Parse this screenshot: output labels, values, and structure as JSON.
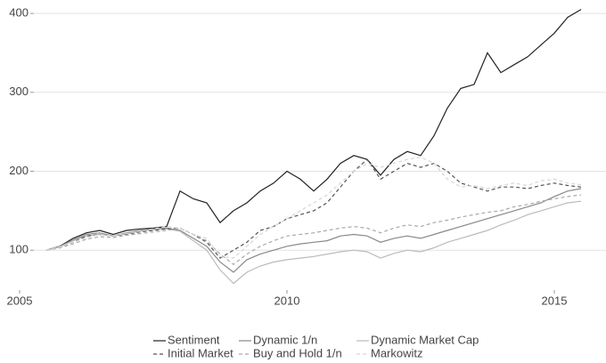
{
  "chart_data": {
    "type": "line",
    "x": [
      2005.5,
      2005.75,
      2006,
      2006.25,
      2006.5,
      2006.75,
      2007,
      2007.25,
      2007.5,
      2007.75,
      2008,
      2008.25,
      2008.5,
      2008.75,
      2009,
      2009.25,
      2009.5,
      2009.75,
      2010,
      2010.25,
      2010.5,
      2010.75,
      2011,
      2011.25,
      2011.5,
      2011.75,
      2012,
      2012.25,
      2012.5,
      2012.75,
      2013,
      2013.25,
      2013.5,
      2013.75,
      2014,
      2014.25,
      2014.5,
      2014.75,
      2015,
      2015.25,
      2015.5
    ],
    "series": [
      {
        "name": "Sentiment",
        "color": "#222222",
        "dash": false,
        "values": [
          100,
          105,
          115,
          122,
          125,
          120,
          125,
          127,
          128,
          130,
          175,
          165,
          160,
          135,
          150,
          160,
          175,
          185,
          200,
          190,
          175,
          190,
          210,
          220,
          215,
          195,
          215,
          225,
          220,
          245,
          280,
          305,
          310,
          350,
          325,
          335,
          345,
          360,
          375,
          395,
          405
        ]
      },
      {
        "name": "Dynamic 1/n",
        "color": "#888888",
        "dash": false,
        "values": [
          100,
          105,
          113,
          120,
          122,
          118,
          122,
          125,
          127,
          128,
          125,
          115,
          105,
          85,
          72,
          88,
          95,
          100,
          105,
          108,
          110,
          112,
          118,
          120,
          118,
          110,
          115,
          118,
          115,
          120,
          125,
          130,
          135,
          140,
          145,
          150,
          155,
          160,
          168,
          175,
          178
        ]
      },
      {
        "name": "Dynamic Market Cap",
        "color": "#bbbbbb",
        "dash": false,
        "values": [
          100,
          104,
          112,
          118,
          120,
          118,
          121,
          124,
          126,
          127,
          124,
          112,
          100,
          75,
          58,
          72,
          80,
          85,
          88,
          90,
          92,
          95,
          98,
          100,
          98,
          90,
          96,
          100,
          98,
          103,
          110,
          115,
          120,
          125,
          132,
          138,
          145,
          150,
          155,
          160,
          162
        ]
      },
      {
        "name": "Initial Market",
        "color": "#555555",
        "dash": true,
        "values": [
          100,
          103,
          110,
          118,
          120,
          118,
          120,
          123,
          125,
          127,
          128,
          120,
          110,
          90,
          100,
          110,
          125,
          130,
          140,
          145,
          150,
          160,
          180,
          200,
          215,
          190,
          200,
          210,
          205,
          210,
          200,
          185,
          180,
          175,
          180,
          180,
          178,
          182,
          185,
          182,
          180
        ]
      },
      {
        "name": "Buy and Hold 1/n",
        "color": "#aaaaaa",
        "dash": true,
        "values": [
          100,
          103,
          108,
          114,
          117,
          116,
          119,
          121,
          123,
          125,
          128,
          120,
          112,
          95,
          82,
          95,
          105,
          112,
          118,
          120,
          122,
          125,
          128,
          130,
          128,
          122,
          128,
          132,
          130,
          135,
          138,
          142,
          145,
          148,
          150,
          155,
          158,
          162,
          165,
          168,
          170
        ]
      },
      {
        "name": "Markowitz",
        "color": "#d6d6d6",
        "dash": true,
        "values": [
          100,
          104,
          110,
          116,
          120,
          118,
          121,
          124,
          127,
          130,
          128,
          120,
          115,
          92,
          90,
          105,
          120,
          130,
          140,
          150,
          160,
          170,
          185,
          200,
          210,
          205,
          210,
          215,
          218,
          210,
          190,
          180,
          182,
          178,
          182,
          185,
          182,
          188,
          190,
          185,
          183
        ]
      }
    ],
    "xlim": [
      2005,
      2015.8
    ],
    "xticks": [
      2005,
      2010,
      2015
    ],
    "ylim": [
      45,
      417
    ],
    "yticks": [
      100,
      200,
      300,
      400
    ],
    "grid": true,
    "legend": "bottom"
  }
}
